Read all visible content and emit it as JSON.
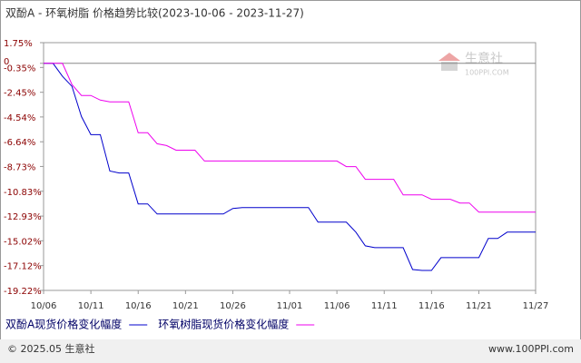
{
  "chart_data": {
    "type": "line",
    "title": "双酚A - 环氧树脂 价格趋势比较(2023-10-06 - 2023-11-27)",
    "watermark": [
      "生意社",
      "100PPI.COM"
    ],
    "footer_left": "© 2025.05 生意社",
    "footer_right": "www.100PPI.com",
    "categories": [
      "10/06",
      null,
      null,
      null,
      null,
      "10/11",
      null,
      null,
      null,
      null,
      "10/16",
      null,
      null,
      null,
      null,
      "10/21",
      null,
      null,
      null,
      null,
      "10/26",
      null,
      null,
      null,
      null,
      null,
      "11/01",
      null,
      null,
      null,
      null,
      "11/06",
      null,
      null,
      null,
      null,
      "11/11",
      null,
      null,
      null,
      null,
      "11/16",
      null,
      null,
      null,
      null,
      "11/21",
      null,
      null,
      null,
      null,
      null,
      "11/27"
    ],
    "series": [
      {
        "name": "双酚A现货价格变化幅度",
        "color": "#0000cc",
        "values": [
          0,
          0,
          -1.1,
          -1.95,
          -4.5,
          -6.04,
          -6.04,
          -9.12,
          -9.28,
          -9.28,
          -11.9,
          -11.9,
          -12.75,
          -12.75,
          -12.75,
          -12.75,
          -12.75,
          -12.75,
          -12.75,
          -12.75,
          -12.28,
          -12.21,
          -12.21,
          -12.21,
          -12.21,
          -12.21,
          -12.21,
          -12.21,
          -12.21,
          -13.44,
          -13.44,
          -13.44,
          -13.44,
          -14.29,
          -15.45,
          -15.6,
          -15.6,
          -15.6,
          -15.6,
          -17.45,
          -17.53,
          -17.53,
          -16.45,
          -16.45,
          -16.45,
          -16.45,
          -16.45,
          -14.83,
          -14.83,
          -14.29,
          -14.29,
          -14.29,
          -14.29
        ]
      },
      {
        "name": "环氧树脂现货价格变化幅度",
        "color": "#ee00ee",
        "values": [
          0,
          0,
          0,
          -1.8,
          -2.72,
          -2.72,
          -3.11,
          -3.26,
          -3.26,
          -3.26,
          -5.88,
          -5.88,
          -6.81,
          -6.96,
          -7.35,
          -7.35,
          -7.35,
          -8.27,
          -8.27,
          -8.27,
          -8.27,
          -8.27,
          -8.27,
          -8.27,
          -8.27,
          -8.27,
          -8.27,
          -8.27,
          -8.27,
          -8.27,
          -8.27,
          -8.27,
          -8.74,
          -8.74,
          -9.82,
          -9.82,
          -9.82,
          -9.82,
          -11.13,
          -11.13,
          -11.13,
          -11.51,
          -11.51,
          -11.51,
          -11.82,
          -11.82,
          -12.59,
          -12.59,
          -12.59,
          -12.59,
          -12.59,
          -12.59,
          -12.59
        ]
      }
    ],
    "ylim": [
      -19.22,
      1.75
    ],
    "yticks": [
      {
        "value": 1.75,
        "label": "1.75%"
      },
      0,
      {
        "value": -0.35,
        "label": "-0.35%"
      },
      {
        "value": -2.45,
        "label": "-2.45%"
      },
      {
        "value": -4.54,
        "label": "-4.54%"
      },
      {
        "value": -6.64,
        "label": "-6.64%"
      },
      {
        "value": -8.73,
        "label": "-8.73%"
      },
      {
        "value": -10.83,
        "label": "-10.83%"
      },
      {
        "value": -12.93,
        "label": "-12.93%"
      },
      {
        "value": -15.02,
        "label": "-15.02%"
      },
      {
        "value": -17.12,
        "label": "-17.12%"
      },
      {
        "value": -19.22,
        "label": "-19.22%"
      }
    ],
    "zero_line": true
  }
}
